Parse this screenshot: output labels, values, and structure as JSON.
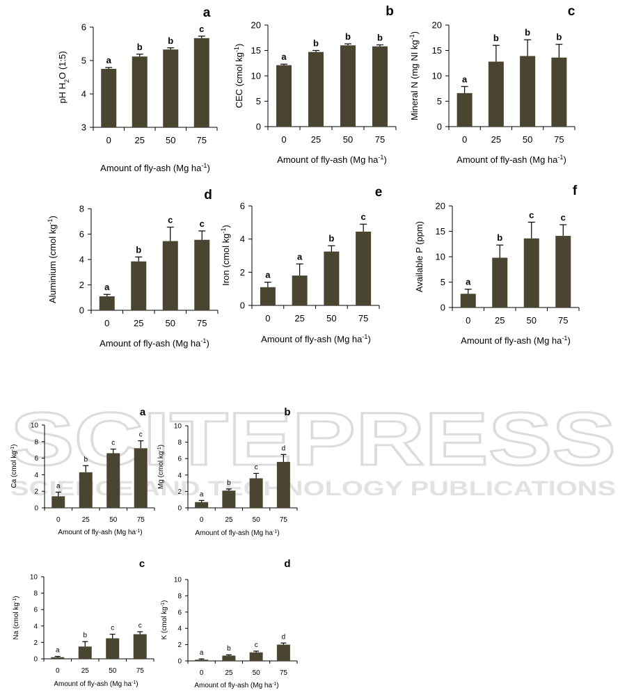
{
  "watermark": {
    "big": "SCITEPRESS",
    "small": "SCIENCE AND TECHNOLOGY PUBLICATIONS",
    "color": "#d9d9d9"
  },
  "bar_color": "#4a4530",
  "chart_data": [
    {
      "type": "bar",
      "panel_letter": "a",
      "categories": [
        "0",
        "25",
        "50",
        "75"
      ],
      "values": [
        4.75,
        5.12,
        5.33,
        5.67
      ],
      "errors": [
        0.04,
        0.07,
        0.05,
        0.06
      ],
      "sig_letters": [
        "a",
        "b",
        "b",
        "c"
      ],
      "ylabel": "pH H2O (1:5)",
      "ylabel_parts": [
        {
          "t": "pH H"
        },
        {
          "t": "2",
          "sub": true
        },
        {
          "t": "O (1:5)"
        }
      ],
      "xlabel": "Amount of fly-ash (Mg ha-1)",
      "xlabel_parts": [
        {
          "t": "Amount of fly-ash (Mg ha"
        },
        {
          "t": "-1",
          "sup": true
        },
        {
          "t": ")"
        }
      ],
      "ylim": [
        3,
        6
      ],
      "yticks": [
        3,
        4,
        5,
        6
      ]
    },
    {
      "type": "bar",
      "panel_letter": "b",
      "categories": [
        "0",
        "25",
        "50",
        "75"
      ],
      "values": [
        12.1,
        14.7,
        16.0,
        15.8
      ],
      "errors": [
        0.2,
        0.3,
        0.3,
        0.3
      ],
      "sig_letters": [
        "a",
        "b",
        "b",
        "b"
      ],
      "ylabel": "CEC (cmol kg-1)",
      "ylabel_parts": [
        {
          "t": "CEC  (cmol kg"
        },
        {
          "t": "-1",
          "sup": true
        },
        {
          "t": ")"
        }
      ],
      "xlabel": "Amount of fly-ash (Mg ha-1)",
      "xlabel_parts": [
        {
          "t": "Amount of fly-ash (Mg ha"
        },
        {
          "t": "-1",
          "sup": true
        },
        {
          "t": ")"
        }
      ],
      "ylim": [
        0,
        20
      ],
      "yticks": [
        0,
        5,
        10,
        15,
        20
      ]
    },
    {
      "type": "bar",
      "panel_letter": "c",
      "categories": [
        "0",
        "25",
        "50",
        "75"
      ],
      "values": [
        6.6,
        12.8,
        13.9,
        13.6
      ],
      "errors": [
        1.3,
        3.2,
        3.2,
        2.6
      ],
      "sig_letters": [
        "a",
        "b",
        "b",
        "b"
      ],
      "ylabel": "Mineral N (mg NI kg-1)",
      "ylabel_parts": [
        {
          "t": "Mineral N  (mg NI kg"
        },
        {
          "t": "-1",
          "sup": true
        },
        {
          "t": ")"
        }
      ],
      "xlabel": "Amount of fly-ash (Mg ha-1)",
      "xlabel_parts": [
        {
          "t": "Amount of fly-ash (Mg ha"
        },
        {
          "t": "-1",
          "sup": true
        },
        {
          "t": ")"
        }
      ],
      "ylim": [
        0,
        20
      ],
      "yticks": [
        0,
        5,
        10,
        15,
        20
      ]
    },
    {
      "type": "bar",
      "panel_letter": "d",
      "categories": [
        "0",
        "25",
        "50",
        "75"
      ],
      "values": [
        1.1,
        3.85,
        5.45,
        5.55
      ],
      "errors": [
        0.15,
        0.35,
        1.1,
        0.7
      ],
      "sig_letters": [
        "a",
        "b",
        "c",
        "c"
      ],
      "ylabel": "Aluminium (cmol kg-1)",
      "ylabel_parts": [
        {
          "t": "Aluminium  (cmol kg"
        },
        {
          "t": "-1",
          "sup": true
        },
        {
          "t": ")"
        }
      ],
      "xlabel": "Amount of fly-ash (Mg ha-1)",
      "xlabel_parts": [
        {
          "t": "Amount of fly-ash (Mg ha"
        },
        {
          "t": "-1",
          "sup": true
        },
        {
          "t": ")"
        }
      ],
      "ylim": [
        0,
        8
      ],
      "yticks": [
        0,
        2,
        4,
        6,
        8
      ]
    },
    {
      "type": "bar",
      "panel_letter": "e",
      "categories": [
        "0",
        "25",
        "50",
        "75"
      ],
      "values": [
        1.1,
        1.8,
        3.25,
        4.45
      ],
      "errors": [
        0.3,
        0.7,
        0.35,
        0.45
      ],
      "sig_letters": [
        "a",
        "a",
        "b",
        "c"
      ],
      "ylabel": "Iron (cmol kg-1)",
      "ylabel_parts": [
        {
          "t": "Iron  (cmol kg"
        },
        {
          "t": "-1",
          "sup": true
        },
        {
          "t": ")"
        }
      ],
      "xlabel": "Amount of fly-ash (Mg ha-1)",
      "xlabel_parts": [
        {
          "t": "Amount of fly-ash (Mg ha"
        },
        {
          "t": "-1",
          "sup": true
        },
        {
          "t": ")"
        }
      ],
      "ylim": [
        0,
        6
      ],
      "yticks": [
        0,
        2,
        4,
        6
      ]
    },
    {
      "type": "bar",
      "panel_letter": "f",
      "categories": [
        "0",
        "25",
        "50",
        "75"
      ],
      "values": [
        2.7,
        9.8,
        13.6,
        14.1
      ],
      "errors": [
        0.9,
        2.5,
        3.2,
        2.2
      ],
      "sig_letters": [
        "a",
        "b",
        "c",
        "c"
      ],
      "ylabel": "Available P (ppm)",
      "ylabel_parts": [
        {
          "t": "Available P (ppm)"
        }
      ],
      "xlabel": "Amount of fly-ash (Mg ha-1)",
      "xlabel_parts": [
        {
          "t": "Amount of fly-ash  (Mg ha"
        },
        {
          "t": "-1",
          "sup": true
        },
        {
          "t": ")"
        }
      ],
      "ylim": [
        0,
        20
      ],
      "yticks": [
        0,
        5,
        10,
        15,
        20
      ]
    },
    {
      "type": "bar",
      "panel_letter": "a",
      "categories": [
        "0",
        "25",
        "50",
        "75"
      ],
      "values": [
        1.4,
        4.3,
        6.6,
        7.2
      ],
      "errors": [
        0.5,
        0.8,
        0.5,
        0.9
      ],
      "sig_letters": [
        "a",
        "b",
        "c",
        "c"
      ],
      "ylabel": "Ca (cmol kg-1)",
      "ylabel_parts": [
        {
          "t": "Ca (cmol kg"
        },
        {
          "t": "-1",
          "sup": true
        },
        {
          "t": ")"
        }
      ],
      "xlabel": "Amount of fly-ash (Mg ha-1)",
      "xlabel_parts": [
        {
          "t": "Amount of fly-ash (Mg ha"
        },
        {
          "t": "-1",
          "sup": true
        },
        {
          "t": ")"
        }
      ],
      "ylim": [
        0,
        10
      ],
      "yticks": [
        0,
        2,
        4,
        6,
        8,
        10
      ]
    },
    {
      "type": "bar",
      "panel_letter": "b",
      "categories": [
        "0",
        "25",
        "50",
        "75"
      ],
      "values": [
        0.7,
        2.1,
        3.6,
        5.6
      ],
      "errors": [
        0.2,
        0.2,
        0.6,
        0.9
      ],
      "sig_letters": [
        "a",
        "b",
        "c",
        "d"
      ],
      "ylabel": "Mg (cmol kg-1)",
      "ylabel_parts": [
        {
          "t": "Mg (cmol kg"
        },
        {
          "t": "-1",
          "sup": true
        },
        {
          "t": ")"
        }
      ],
      "xlabel": "Amount of fly-ash (Mg ha-1)",
      "xlabel_parts": [
        {
          "t": "Amount of fly-ash (Mg ha"
        },
        {
          "t": "-1",
          "sup": true
        },
        {
          "t": ")"
        }
      ],
      "ylim": [
        0,
        10
      ],
      "yticks": [
        0,
        2,
        4,
        6,
        8,
        10
      ]
    },
    {
      "type": "bar",
      "panel_letter": "c",
      "categories": [
        "0",
        "25",
        "50",
        "75"
      ],
      "values": [
        0.2,
        1.5,
        2.5,
        3.0
      ],
      "errors": [
        0.1,
        0.6,
        0.5,
        0.3
      ],
      "sig_letters": [
        "a",
        "b",
        "c",
        "c"
      ],
      "ylabel": "Na (cmol kg-1)",
      "ylabel_parts": [
        {
          "t": "Na (cmol kg"
        },
        {
          "t": "-1",
          "sup": true
        },
        {
          "t": ")"
        }
      ],
      "xlabel": "Amount of fly-ash (Mg ha-1)",
      "xlabel_parts": [
        {
          "t": "Amount of fly-ash (Mg ha"
        },
        {
          "t": "-1",
          "sup": true
        },
        {
          "t": ")"
        }
      ],
      "ylim": [
        0,
        10
      ],
      "yticks": [
        0,
        2,
        4,
        6,
        8,
        10
      ]
    },
    {
      "type": "bar",
      "panel_letter": "d",
      "categories": [
        "0",
        "25",
        "50",
        "75"
      ],
      "values": [
        0.15,
        0.65,
        1.05,
        2.0
      ],
      "errors": [
        0.1,
        0.1,
        0.15,
        0.2
      ],
      "sig_letters": [
        "a",
        "b",
        "c",
        "d"
      ],
      "ylabel": "K (cmol kg-1)",
      "ylabel_parts": [
        {
          "t": "K (cmol kg"
        },
        {
          "t": "-1",
          "sup": true
        },
        {
          "t": ")"
        }
      ],
      "xlabel": "Amount of fly-ash (Mg ha-1)",
      "xlabel_parts": [
        {
          "t": "Amount of fly-ash (Mg ha"
        },
        {
          "t": "-1",
          "sup": true
        },
        {
          "t": ")"
        }
      ],
      "ylim": [
        0,
        10
      ],
      "yticks": [
        0,
        2,
        4,
        6,
        8,
        10
      ]
    }
  ]
}
